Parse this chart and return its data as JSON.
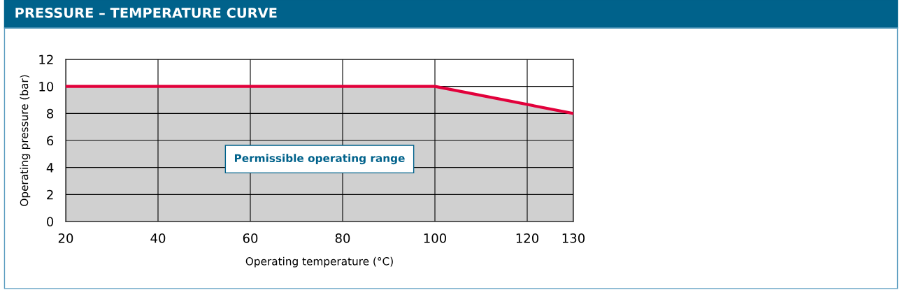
{
  "chart_data": {
    "type": "area",
    "title": "PRESSURE – TEMPERATURE CURVE",
    "xlabel": "Operating temperature (°C)",
    "ylabel": "Operating pressure (bar)",
    "x": [
      20,
      100,
      130
    ],
    "series": [
      {
        "color": "#e2003b",
        "values": [
          10,
          10,
          8
        ]
      }
    ],
    "xlim": [
      20,
      130
    ],
    "xticks": [
      20,
      40,
      60,
      80,
      100,
      120,
      130
    ],
    "ylim": [
      0,
      12
    ],
    "yticks": [
      0,
      2,
      4,
      6,
      8,
      10,
      12
    ],
    "grid": true,
    "legend": false,
    "annotations": [
      "Permissible operating range"
    ]
  }
}
